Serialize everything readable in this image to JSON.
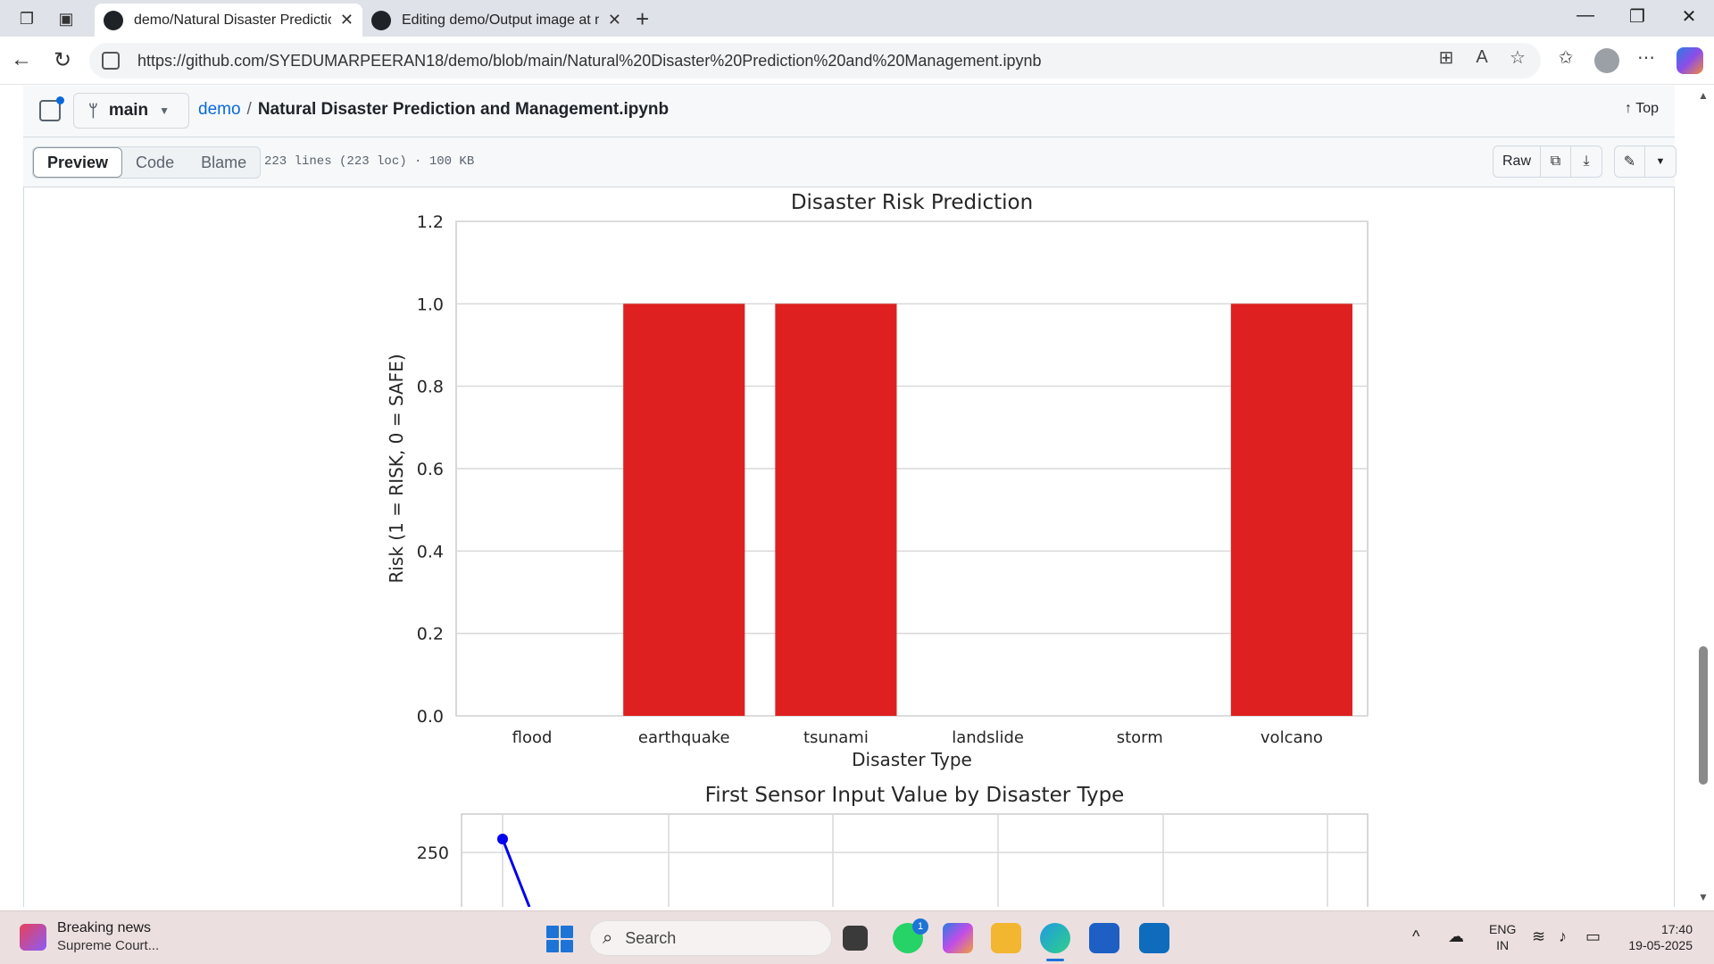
{
  "browser": {
    "tabs": [
      {
        "title": "demo/Natural Disaster Prediction",
        "active": true
      },
      {
        "title": "Editing demo/Output image at m",
        "active": false
      }
    ],
    "url": "https://github.com/SYEDUMARPEERAN18/demo/blob/main/Natural%20Disaster%20Prediction%20and%20Management.ipynb"
  },
  "repo_header": {
    "branch": "main",
    "repo": "demo",
    "separator": "/",
    "file": "Natural Disaster Prediction and Management.ipynb",
    "top_label": "Top"
  },
  "toolbar": {
    "views": [
      "Preview",
      "Code",
      "Blame"
    ],
    "active_view": "Preview",
    "file_info": "223 lines (223 loc) · 100 KB",
    "raw_label": "Raw"
  },
  "chart_data": [
    {
      "type": "bar",
      "title": "Disaster Risk Prediction",
      "xlabel": "Disaster Type",
      "ylabel": "Risk (1 = RISK, 0 = SAFE)",
      "categories": [
        "flood",
        "earthquake",
        "tsunami",
        "landslide",
        "storm",
        "volcano"
      ],
      "values": [
        0,
        1,
        1,
        0,
        0,
        1
      ],
      "ylim": [
        0,
        1.2
      ],
      "yticks": [
        "0.0",
        "0.2",
        "0.4",
        "0.6",
        "0.8",
        "1.0",
        "1.2"
      ],
      "bar_color": "#de2020",
      "grid": true
    },
    {
      "type": "line",
      "title": "First Sensor Input Value by Disaster Type",
      "yticks": [
        "250"
      ],
      "line_color": "#0000ee",
      "grid": true
    }
  ],
  "taskbar": {
    "news_title": "Breaking news",
    "news_sub": "Supreme Court...",
    "search_placeholder": "Search",
    "whatsapp_badge": "1",
    "lang_top": "ENG",
    "lang_bottom": "IN",
    "time": "17:40",
    "date": "19-05-2025"
  },
  "colors": {
    "accent": "#0969da",
    "bar": "#de2020",
    "line": "#0000ee"
  }
}
